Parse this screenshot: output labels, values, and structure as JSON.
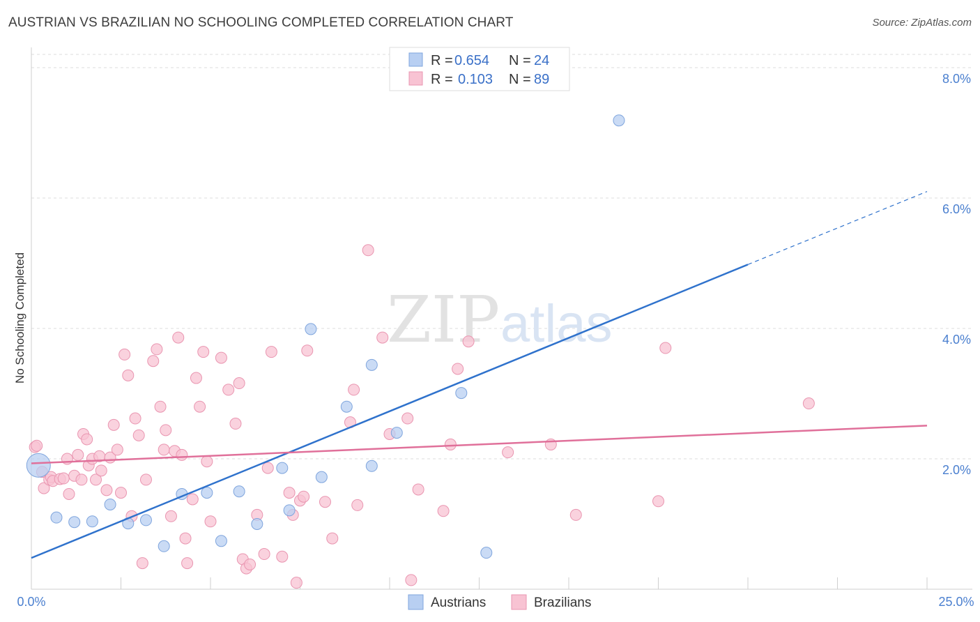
{
  "header": {
    "title": "AUSTRIAN VS BRAZILIAN NO SCHOOLING COMPLETED CORRELATION CHART",
    "source": "Source: ZipAtlas.com"
  },
  "watermark": {
    "zip": "ZIP",
    "atlas": "atlas"
  },
  "legend": {
    "r_label": "R =",
    "n_label": "N =",
    "entries": [
      {
        "r": "0.654",
        "n": "24"
      },
      {
        "r": "0.103",
        "n": "89"
      }
    ]
  },
  "colors": {
    "austrians_fill": "#b8cff2",
    "austrians_stroke": "#7fa5dd",
    "austrians_line": "#2f72cc",
    "brazilians_fill": "#f8c3d3",
    "brazilians_stroke": "#e995b0",
    "brazilians_line": "#e0709a",
    "grid": "#dcdcdc"
  },
  "chart_data": {
    "type": "scatter",
    "title": "AUSTRIAN VS BRAZILIAN NO SCHOOLING COMPLETED CORRELATION CHART",
    "xlabel": "",
    "ylabel": "No Schooling Completed",
    "xlim": [
      0,
      25
    ],
    "ylim": [
      0,
      8.4
    ],
    "x_tick_labels": [
      {
        "value": 0,
        "label": "0.0%"
      },
      {
        "value": 25,
        "label": "25.0%"
      }
    ],
    "y_tick_labels": [
      {
        "value": 2,
        "label": "2.0%"
      },
      {
        "value": 4,
        "label": "4.0%"
      },
      {
        "value": 6,
        "label": "6.0%"
      },
      {
        "value": 8,
        "label": "8.0%"
      }
    ],
    "grid": "horizontal dashed",
    "legend_position": "top-center",
    "series": [
      {
        "name": "Austrians",
        "r": 0.654,
        "n": 24,
        "trend": {
          "x0": 0,
          "y0": 0.48,
          "x1": 20,
          "y1": 4.98,
          "dash_to_x": 25,
          "dash_to_y": 6.1
        },
        "points": [
          {
            "x": 0.2,
            "y": 1.9,
            "big": true
          },
          {
            "x": 0.7,
            "y": 1.1
          },
          {
            "x": 1.2,
            "y": 1.03
          },
          {
            "x": 1.7,
            "y": 1.04
          },
          {
            "x": 2.2,
            "y": 1.3
          },
          {
            "x": 2.7,
            "y": 1.01
          },
          {
            "x": 3.2,
            "y": 1.06
          },
          {
            "x": 3.7,
            "y": 0.66
          },
          {
            "x": 4.2,
            "y": 1.46
          },
          {
            "x": 4.9,
            "y": 1.48
          },
          {
            "x": 5.3,
            "y": 0.74
          },
          {
            "x": 5.8,
            "y": 1.5
          },
          {
            "x": 6.3,
            "y": 1.0
          },
          {
            "x": 7.0,
            "y": 1.86
          },
          {
            "x": 7.2,
            "y": 1.21
          },
          {
            "x": 7.8,
            "y": 3.99
          },
          {
            "x": 8.1,
            "y": 1.72
          },
          {
            "x": 8.8,
            "y": 2.8
          },
          {
            "x": 9.5,
            "y": 1.89
          },
          {
            "x": 9.5,
            "y": 3.44
          },
          {
            "x": 10.2,
            "y": 2.4
          },
          {
            "x": 12.0,
            "y": 3.01
          },
          {
            "x": 12.7,
            "y": 0.56
          },
          {
            "x": 16.4,
            "y": 7.19
          }
        ]
      },
      {
        "name": "Brazilians",
        "r": 0.103,
        "n": 89,
        "trend": {
          "x0": 0,
          "y0": 1.93,
          "x1": 25,
          "y1": 2.51
        },
        "points": [
          {
            "x": 0.1,
            "y": 2.18
          },
          {
            "x": 0.3,
            "y": 1.8
          },
          {
            "x": 0.35,
            "y": 1.55
          },
          {
            "x": 0.5,
            "y": 1.68
          },
          {
            "x": 0.55,
            "y": 1.72
          },
          {
            "x": 0.6,
            "y": 1.66
          },
          {
            "x": 0.8,
            "y": 1.69
          },
          {
            "x": 0.9,
            "y": 1.7
          },
          {
            "x": 1.0,
            "y": 2.0
          },
          {
            "x": 1.05,
            "y": 1.46
          },
          {
            "x": 1.2,
            "y": 1.74
          },
          {
            "x": 1.3,
            "y": 2.06
          },
          {
            "x": 1.4,
            "y": 1.68
          },
          {
            "x": 1.45,
            "y": 2.38
          },
          {
            "x": 1.55,
            "y": 2.3
          },
          {
            "x": 1.6,
            "y": 1.9
          },
          {
            "x": 1.7,
            "y": 2.0
          },
          {
            "x": 1.8,
            "y": 1.68
          },
          {
            "x": 1.9,
            "y": 2.04
          },
          {
            "x": 1.95,
            "y": 1.82
          },
          {
            "x": 2.1,
            "y": 1.52
          },
          {
            "x": 2.2,
            "y": 2.02
          },
          {
            "x": 2.3,
            "y": 2.52
          },
          {
            "x": 2.4,
            "y": 2.14
          },
          {
            "x": 2.5,
            "y": 1.48
          },
          {
            "x": 2.6,
            "y": 3.6
          },
          {
            "x": 2.7,
            "y": 3.28
          },
          {
            "x": 2.8,
            "y": 1.12
          },
          {
            "x": 2.9,
            "y": 2.62
          },
          {
            "x": 3.0,
            "y": 2.36
          },
          {
            "x": 3.1,
            "y": 0.4
          },
          {
            "x": 3.2,
            "y": 1.68
          },
          {
            "x": 3.4,
            "y": 3.5
          },
          {
            "x": 3.5,
            "y": 3.68
          },
          {
            "x": 3.6,
            "y": 2.8
          },
          {
            "x": 3.7,
            "y": 2.14
          },
          {
            "x": 3.75,
            "y": 2.44
          },
          {
            "x": 3.9,
            "y": 1.12
          },
          {
            "x": 4.0,
            "y": 2.12
          },
          {
            "x": 4.1,
            "y": 3.86
          },
          {
            "x": 4.2,
            "y": 2.06
          },
          {
            "x": 4.3,
            "y": 0.78
          },
          {
            "x": 4.35,
            "y": 0.4
          },
          {
            "x": 4.5,
            "y": 1.38
          },
          {
            "x": 4.6,
            "y": 3.24
          },
          {
            "x": 4.7,
            "y": 2.8
          },
          {
            "x": 4.8,
            "y": 3.64
          },
          {
            "x": 4.9,
            "y": 1.96
          },
          {
            "x": 5.0,
            "y": 1.04
          },
          {
            "x": 5.3,
            "y": 3.55
          },
          {
            "x": 5.5,
            "y": 3.06
          },
          {
            "x": 5.7,
            "y": 2.54
          },
          {
            "x": 5.8,
            "y": 3.16
          },
          {
            "x": 5.9,
            "y": 0.46
          },
          {
            "x": 6.0,
            "y": 0.32
          },
          {
            "x": 6.1,
            "y": 0.38
          },
          {
            "x": 6.3,
            "y": 1.14
          },
          {
            "x": 6.5,
            "y": 0.54
          },
          {
            "x": 6.6,
            "y": 1.86
          },
          {
            "x": 6.7,
            "y": 3.64
          },
          {
            "x": 7.0,
            "y": 0.5
          },
          {
            "x": 7.2,
            "y": 1.48
          },
          {
            "x": 7.3,
            "y": 1.14
          },
          {
            "x": 7.4,
            "y": 0.1
          },
          {
            "x": 7.5,
            "y": 1.36
          },
          {
            "x": 7.6,
            "y": 1.42
          },
          {
            "x": 7.7,
            "y": 3.66
          },
          {
            "x": 8.2,
            "y": 1.34
          },
          {
            "x": 8.4,
            "y": 0.78
          },
          {
            "x": 8.9,
            "y": 2.56
          },
          {
            "x": 9.0,
            "y": 3.06
          },
          {
            "x": 9.1,
            "y": 1.29
          },
          {
            "x": 9.4,
            "y": 5.2
          },
          {
            "x": 9.8,
            "y": 3.86
          },
          {
            "x": 10.0,
            "y": 2.38
          },
          {
            "x": 10.5,
            "y": 2.62
          },
          {
            "x": 10.6,
            "y": 0.14
          },
          {
            "x": 10.8,
            "y": 1.53
          },
          {
            "x": 11.5,
            "y": 1.2
          },
          {
            "x": 11.7,
            "y": 2.22
          },
          {
            "x": 11.9,
            "y": 3.38
          },
          {
            "x": 12.2,
            "y": 3.8
          },
          {
            "x": 13.3,
            "y": 2.1
          },
          {
            "x": 14.5,
            "y": 2.22
          },
          {
            "x": 15.2,
            "y": 1.14
          },
          {
            "x": 17.5,
            "y": 1.35
          },
          {
            "x": 17.7,
            "y": 3.7
          },
          {
            "x": 21.7,
            "y": 2.85
          },
          {
            "x": 0.15,
            "y": 2.2
          }
        ]
      }
    ]
  }
}
